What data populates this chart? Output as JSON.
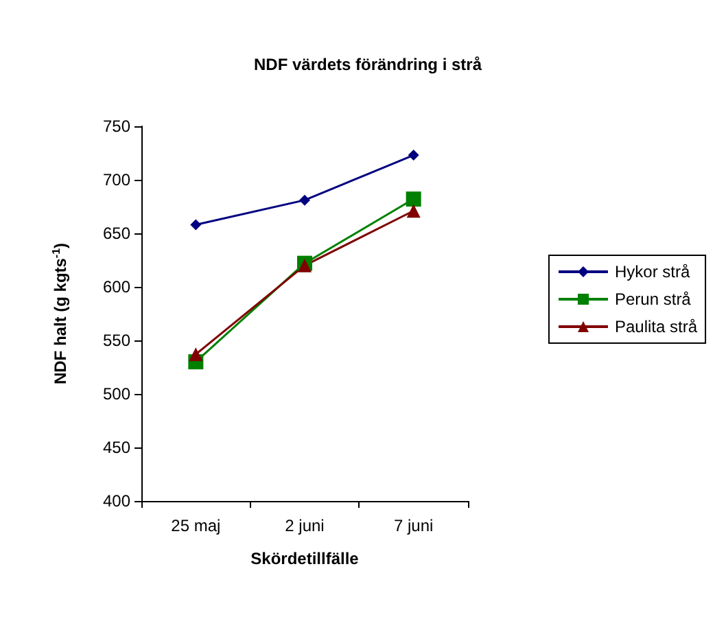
{
  "chart_data": {
    "type": "line",
    "title": "NDF värdets förändring i strå",
    "xlabel": "Skördetillfälle",
    "ylabel": "NDF halt (g kgts$^{-1}$)",
    "categories": [
      "25 maj",
      "2 juni",
      "7 juni"
    ],
    "series": [
      {
        "name": "Hykor strå",
        "color": "#000080",
        "marker": "diamond",
        "values": [
          658,
          681,
          723
        ]
      },
      {
        "name": "Perun strå",
        "color": "#008000",
        "marker": "square",
        "values": [
          530,
          622,
          682
        ]
      },
      {
        "name": "Paulita strå",
        "color": "#800000",
        "marker": "triangle",
        "values": [
          537,
          620,
          671
        ]
      }
    ],
    "ylim": [
      400,
      750
    ],
    "yticks": [
      400,
      450,
      500,
      550,
      600,
      650,
      700,
      750
    ],
    "grid": false,
    "legend": "right",
    "line_style": "solid"
  }
}
